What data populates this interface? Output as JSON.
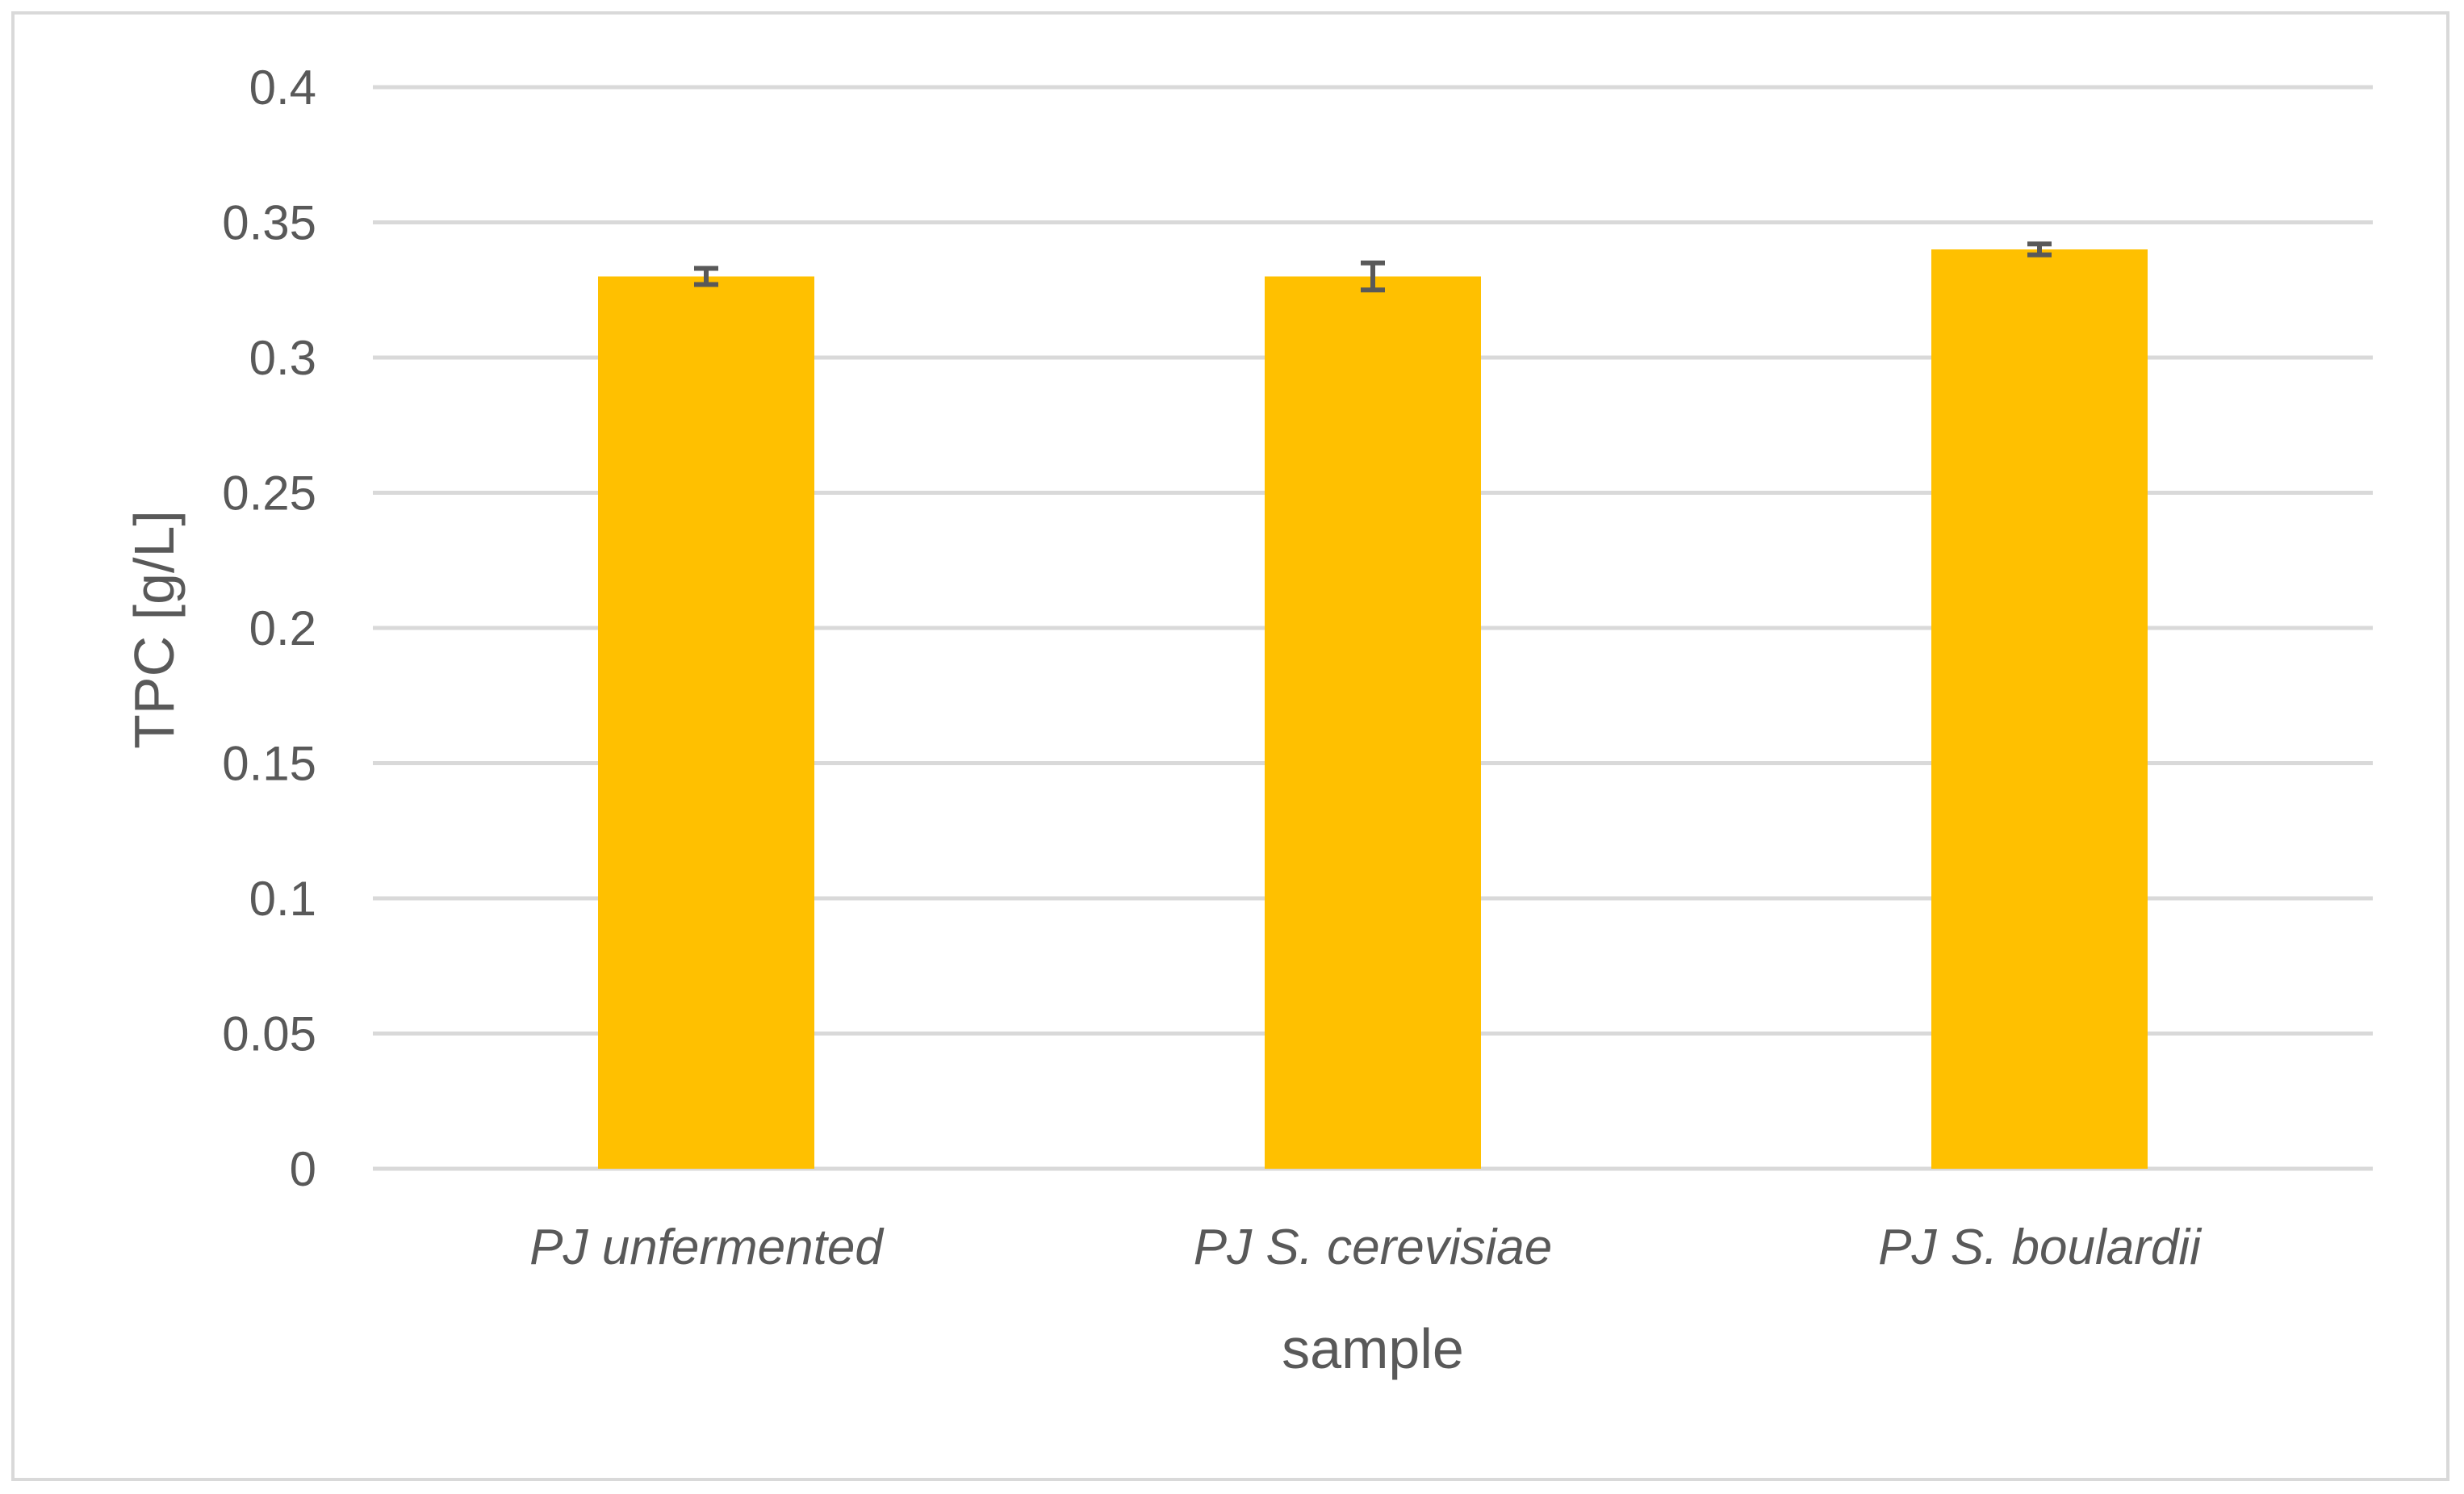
{
  "chart_data": {
    "type": "bar",
    "categories": [
      "PJ unfermented",
      "PJ S. cerevisiae",
      "PJ S. boulardii"
    ],
    "values": [
      0.33,
      0.33,
      0.34
    ],
    "errors": [
      0.003,
      0.005,
      0.002
    ],
    "title": "",
    "xlabel": "sample",
    "ylabel": "TPC [g/L]",
    "ylim": [
      0,
      0.4
    ],
    "yticks": [
      0,
      0.05,
      0.1,
      0.15,
      0.2,
      0.25,
      0.3,
      0.35,
      0.4
    ],
    "ytick_labels": [
      "0",
      "0.05",
      "0.1",
      "0.15",
      "0.2",
      "0.25",
      "0.3",
      "0.35",
      "0.4"
    ],
    "grid": true,
    "legend": "none",
    "colors": {
      "bar": "#FFC000",
      "grid": "#d9d9d9",
      "error_bar": "#595959",
      "text": "#595959"
    }
  }
}
